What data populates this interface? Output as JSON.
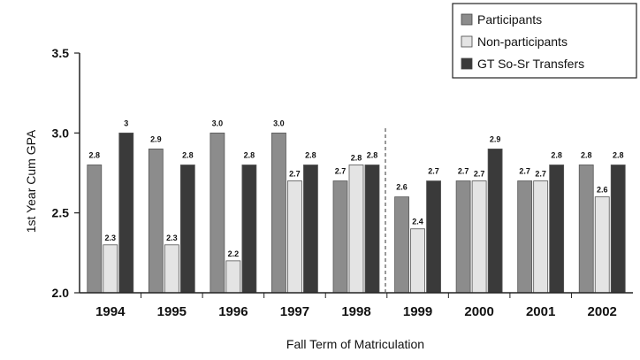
{
  "chart_data": {
    "type": "bar",
    "title": "",
    "xlabel": "Fall Term of Matriculation",
    "ylabel": "1st Year Cum GPA",
    "ylim": [
      2.0,
      3.5
    ],
    "yticks": [
      "2.0",
      "2.5",
      "3.0",
      "3.5"
    ],
    "categories": [
      "1994",
      "1995",
      "1996",
      "1997",
      "1998",
      "1999",
      "2000",
      "2001",
      "2002"
    ],
    "legend_position": "top-right",
    "grid": false,
    "series": [
      {
        "name": "Participants",
        "color": "#8c8c8c",
        "values": [
          2.8,
          2.9,
          3.0,
          3.0,
          2.7,
          2.6,
          2.7,
          2.7,
          2.8
        ],
        "labels": [
          "2.8",
          "2.9",
          "3.0",
          "3.0",
          "2.7",
          "2.6",
          "2.7",
          "2.7",
          "2.8"
        ]
      },
      {
        "name": "Non-participants",
        "color": "#e4e4e4",
        "values": [
          2.3,
          2.3,
          2.2,
          2.7,
          2.8,
          2.4,
          2.7,
          2.7,
          2.6
        ],
        "labels": [
          "2.3",
          "2.3",
          "2.2",
          "2.7",
          "2.8",
          "2.4",
          "2.7",
          "2.7",
          "2.6"
        ]
      },
      {
        "name": "GT So-Sr Transfers",
        "color": "#3a3a3a",
        "values": [
          3.0,
          2.8,
          2.8,
          2.8,
          2.8,
          2.7,
          2.9,
          2.8,
          2.8
        ],
        "labels": [
          "3",
          "2.8",
          "2.8",
          "2.8",
          "2.8",
          "2.7",
          "2.9",
          "2.8",
          "2.8"
        ]
      }
    ]
  }
}
